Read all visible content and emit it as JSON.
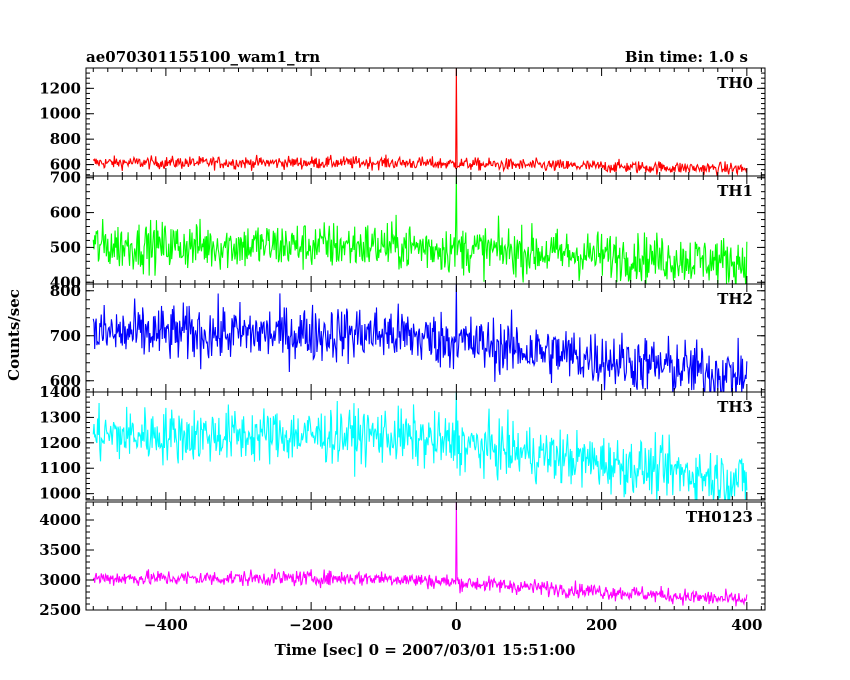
{
  "header": {
    "title": "ae070301155100_wam1_trn",
    "bin_time": "Bin time: 1.0 s"
  },
  "y_axis_label": "Counts/sec",
  "x_axis_label": "Time [sec] 0 = 2007/03/01 15:51:00",
  "chart_data": {
    "type": "line",
    "title": "ae070301155100_wam1_trn",
    "xlabel": "Time [sec] 0 = 2007/03/01 15:51:00",
    "ylabel": "Counts/sec",
    "xlim": [
      -510,
      425
    ],
    "x_ticks": [
      -400,
      -200,
      0,
      200,
      400
    ],
    "x_tick_labels": [
      "−400",
      "−200",
      "0",
      "200",
      "400"
    ],
    "bin_time_s": 1.0,
    "x_start": -500,
    "x_end": 400,
    "panels": [
      {
        "name": "TH0",
        "color": "#ff0000",
        "ylim": [
          510,
          1360
        ],
        "ticks": [
          600,
          800,
          1000,
          1200
        ],
        "start_level": 615,
        "end_level": 565,
        "noise": 25,
        "spike_peak": 1360
      },
      {
        "name": "TH1",
        "color": "#00ff00",
        "ylim": [
          395,
          705
        ],
        "ticks": [
          400,
          500,
          600,
          700
        ],
        "start_level": 505,
        "end_level": 458,
        "noise": 35,
        "spike_peak": 705
      },
      {
        "name": "TH2",
        "color": "#0000ff",
        "ylim": [
          575,
          815
        ],
        "ticks": [
          600,
          700,
          800
        ],
        "start_level": 705,
        "end_level": 610,
        "noise": 32,
        "spike_peak": 815
      },
      {
        "name": "TH3",
        "color": "#00ffff",
        "ylim": [
          975,
          1400
        ],
        "ticks": [
          1000,
          1100,
          1200,
          1300,
          1400
        ],
        "start_level": 1230,
        "end_level": 1050,
        "noise": 55,
        "spike_peak": 1400
      },
      {
        "name": "TH0123",
        "color": "#ff00ff",
        "ylim": [
          2500,
          4300
        ],
        "ticks": [
          2500,
          3000,
          3500,
          4000
        ],
        "start_level": 3030,
        "end_level": 2660,
        "noise": 65,
        "spike_peak": 4300
      }
    ]
  }
}
